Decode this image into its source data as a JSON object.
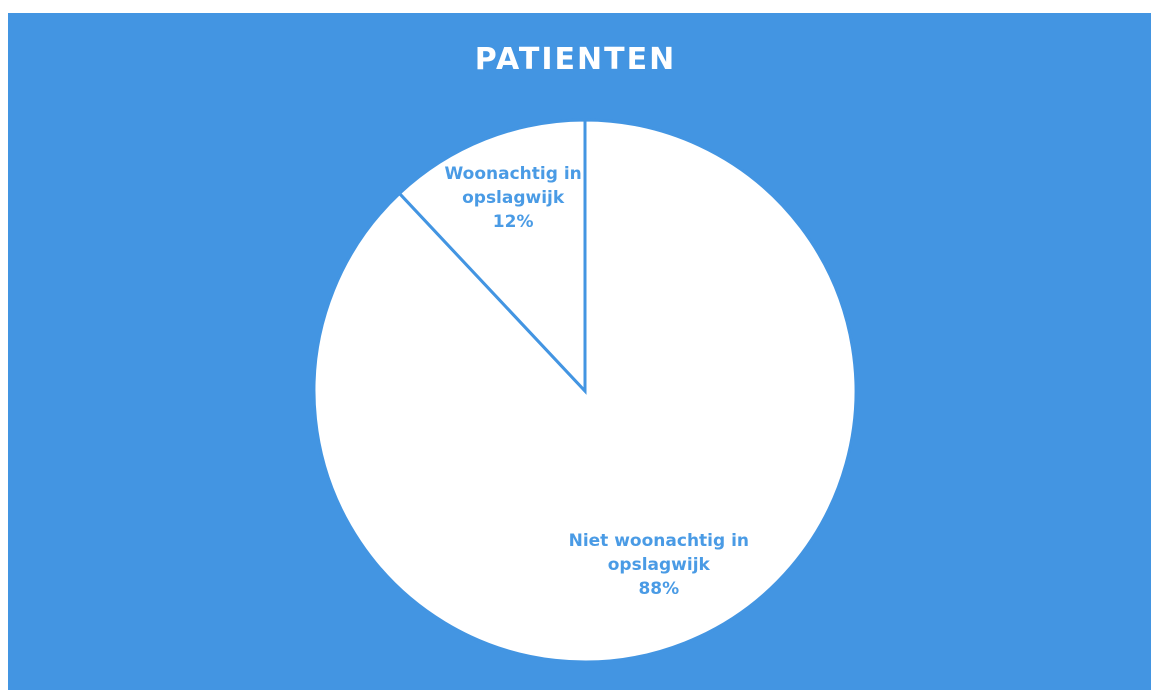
{
  "chart_data": {
    "type": "pie",
    "title": "PATIENTEN",
    "categories": [
      "Niet woonachtig in opslagwijk",
      "Woonachtig in opslagwijk"
    ],
    "values": [
      88,
      12
    ],
    "value_labels": [
      "88%",
      "12%"
    ],
    "colors": [
      "#ffffff",
      "#ffffff"
    ],
    "edge_color": "#4395e2"
  }
}
